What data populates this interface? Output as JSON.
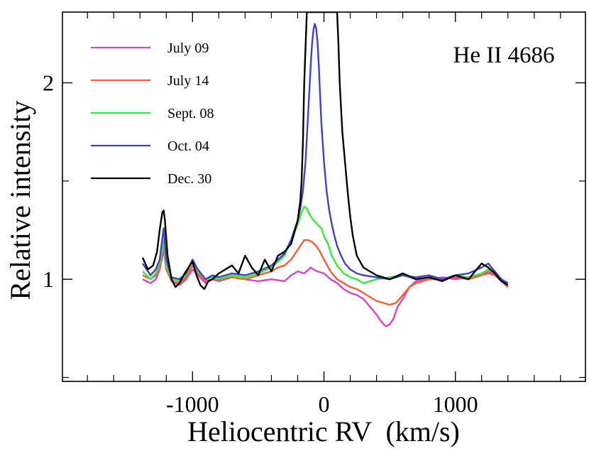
{
  "chart_data": {
    "type": "line",
    "title": "He II 4686",
    "xlabel": "Heliocentric RV  (km/s)",
    "ylabel": "Relative intensity",
    "xlim": [
      -1990,
      1990
    ],
    "ylim": [
      0.48,
      2.36
    ],
    "xticks_labeled": [
      -1000,
      0,
      1000
    ],
    "xtick_labels": [
      "-1000",
      "0",
      "1000"
    ],
    "xticks_minor": [
      -1800,
      -1600,
      -1400,
      -1200,
      -800,
      -600,
      -400,
      -200,
      200,
      400,
      600,
      800,
      1200,
      1400,
      1600,
      1800
    ],
    "yticks_labeled": [
      1,
      2
    ],
    "ytick_labels": [
      "1",
      "2"
    ],
    "yticks_minor": [
      0.5,
      1.5
    ],
    "legend_position": "top-left",
    "grid": false,
    "series": [
      {
        "name": "July 09",
        "color": "#e040d0",
        "x": [
          -1380,
          -1320,
          -1280,
          -1250,
          -1220,
          -1200,
          -1160,
          -1100,
          -1050,
          -1000,
          -960,
          -900,
          -850,
          -800,
          -700,
          -600,
          -500,
          -400,
          -300,
          -250,
          -200,
          -150,
          -100,
          -80,
          -50,
          0,
          50,
          100,
          150,
          200,
          250,
          300,
          350,
          400,
          430,
          470,
          500,
          530,
          560,
          600,
          650,
          700,
          800,
          900,
          1000,
          1100,
          1200,
          1250,
          1300,
          1350,
          1400
        ],
        "y": [
          1.0,
          0.98,
          1.0,
          1.05,
          1.15,
          1.05,
          0.99,
          0.97,
          1.0,
          1.05,
          1.02,
          0.98,
          1.0,
          0.99,
          1.01,
          1.0,
          0.99,
          1.0,
          0.99,
          1.02,
          1.04,
          1.03,
          1.06,
          1.05,
          1.04,
          1.03,
          1.0,
          0.98,
          0.95,
          0.93,
          0.92,
          0.9,
          0.86,
          0.82,
          0.79,
          0.76,
          0.77,
          0.8,
          0.86,
          0.9,
          0.96,
          0.99,
          1.0,
          1.01,
          1.0,
          1.01,
          1.02,
          1.04,
          1.02,
          1.0,
          0.96
        ]
      },
      {
        "name": "July 14",
        "color": "#ff5a30",
        "x": [
          -1380,
          -1320,
          -1280,
          -1250,
          -1220,
          -1200,
          -1160,
          -1100,
          -1050,
          -1000,
          -960,
          -900,
          -850,
          -800,
          -700,
          -600,
          -500,
          -400,
          -350,
          -300,
          -250,
          -200,
          -170,
          -150,
          -120,
          -90,
          -60,
          -30,
          0,
          50,
          100,
          150,
          200,
          250,
          300,
          350,
          400,
          450,
          500,
          550,
          600,
          650,
          700,
          800,
          900,
          1000,
          1100,
          1200,
          1250,
          1300,
          1350,
          1400
        ],
        "y": [
          1.02,
          1.0,
          1.02,
          1.06,
          1.17,
          1.06,
          0.99,
          0.98,
          1.01,
          1.07,
          1.03,
          0.99,
          1.0,
          1.0,
          1.01,
          1.0,
          1.02,
          1.04,
          1.06,
          1.07,
          1.1,
          1.15,
          1.18,
          1.2,
          1.2,
          1.19,
          1.17,
          1.14,
          1.1,
          1.04,
          1.0,
          0.98,
          0.96,
          0.95,
          0.93,
          0.91,
          0.89,
          0.88,
          0.87,
          0.88,
          0.92,
          0.96,
          0.98,
          1.0,
          1.0,
          1.01,
          1.0,
          1.02,
          1.03,
          1.02,
          0.99,
          0.96
        ]
      },
      {
        "name": "Sept. 08",
        "color": "#33ee33",
        "x": [
          -1380,
          -1320,
          -1280,
          -1250,
          -1220,
          -1200,
          -1160,
          -1100,
          -1050,
          -1000,
          -960,
          -900,
          -850,
          -800,
          -700,
          -600,
          -500,
          -400,
          -350,
          -300,
          -250,
          -200,
          -170,
          -150,
          -130,
          -110,
          -80,
          -50,
          -20,
          0,
          30,
          60,
          100,
          150,
          200,
          250,
          300,
          400,
          500,
          600,
          700,
          800,
          900,
          1000,
          1100,
          1200,
          1250,
          1300,
          1350,
          1400
        ],
        "y": [
          1.04,
          1.0,
          1.03,
          1.08,
          1.2,
          1.07,
          1.0,
          0.99,
          1.02,
          1.1,
          1.04,
          1.0,
          1.01,
          1.0,
          1.02,
          1.01,
          1.03,
          1.06,
          1.09,
          1.12,
          1.2,
          1.28,
          1.34,
          1.37,
          1.36,
          1.33,
          1.3,
          1.28,
          1.26,
          1.22,
          1.18,
          1.12,
          1.07,
          1.03,
          1.01,
          1.0,
          0.98,
          1.0,
          1.01,
          1.02,
          1.0,
          1.01,
          1.0,
          1.02,
          1.01,
          1.03,
          1.05,
          1.03,
          1.0,
          0.97
        ]
      },
      {
        "name": "Oct. 04",
        "color": "#4040cc",
        "x": [
          -1380,
          -1320,
          -1280,
          -1250,
          -1220,
          -1200,
          -1160,
          -1100,
          -1050,
          -1000,
          -960,
          -900,
          -850,
          -800,
          -700,
          -600,
          -500,
          -400,
          -350,
          -300,
          -250,
          -200,
          -180,
          -160,
          -140,
          -120,
          -100,
          -90,
          -80,
          -70,
          -60,
          -50,
          -40,
          -30,
          -20,
          0,
          20,
          40,
          60,
          80,
          100,
          130,
          160,
          200,
          250,
          300,
          400,
          500,
          600,
          700,
          800,
          900,
          1000,
          1100,
          1200,
          1250,
          1300,
          1350,
          1400
        ],
        "y": [
          1.08,
          1.02,
          1.05,
          1.1,
          1.26,
          1.1,
          1.01,
          1.0,
          1.03,
          1.1,
          1.05,
          1.0,
          1.02,
          1.01,
          1.03,
          1.02,
          1.04,
          1.07,
          1.1,
          1.13,
          1.2,
          1.3,
          1.36,
          1.45,
          1.6,
          1.85,
          2.1,
          2.2,
          2.27,
          2.3,
          2.28,
          2.22,
          2.1,
          1.95,
          1.8,
          1.6,
          1.45,
          1.35,
          1.28,
          1.22,
          1.17,
          1.12,
          1.08,
          1.05,
          1.03,
          1.02,
          1.01,
          1.0,
          1.02,
          1.01,
          1.02,
          1.0,
          1.02,
          1.03,
          1.06,
          1.08,
          1.04,
          1.0,
          0.98
        ]
      },
      {
        "name": "Dec. 30",
        "color": "#000000",
        "x": [
          -1380,
          -1340,
          -1300,
          -1270,
          -1250,
          -1230,
          -1220,
          -1210,
          -1190,
          -1160,
          -1130,
          -1100,
          -1060,
          -1030,
          -1000,
          -970,
          -940,
          -910,
          -880,
          -850,
          -800,
          -750,
          -700,
          -650,
          -600,
          -550,
          -500,
          -450,
          -400,
          -350,
          -300,
          -250,
          -220,
          -200,
          -180,
          -170,
          -160,
          -150,
          -130,
          -110,
          -100,
          -80,
          -60,
          -40,
          -20,
          0,
          20,
          40,
          60,
          80,
          90,
          100,
          110,
          120,
          140,
          160,
          180,
          200,
          220,
          250,
          300,
          350,
          400,
          500,
          600,
          700,
          800,
          900,
          1000,
          1100,
          1200,
          1250,
          1300,
          1350,
          1400
        ],
        "y": [
          1.11,
          1.05,
          1.07,
          1.14,
          1.25,
          1.34,
          1.35,
          1.3,
          1.12,
          1.0,
          0.96,
          0.98,
          1.03,
          1.06,
          1.09,
          1.02,
          0.97,
          0.95,
          0.99,
          1.0,
          1.03,
          1.05,
          1.07,
          1.03,
          1.12,
          1.06,
          1.02,
          1.1,
          1.04,
          1.12,
          1.14,
          1.18,
          1.25,
          1.3,
          1.4,
          1.5,
          1.7,
          2.0,
          2.36,
          2.36,
          2.36,
          2.36,
          2.36,
          2.36,
          2.36,
          2.36,
          2.36,
          2.36,
          2.36,
          2.36,
          2.36,
          2.36,
          2.2,
          2.0,
          1.75,
          1.6,
          1.45,
          1.32,
          1.22,
          1.12,
          1.06,
          1.04,
          1.02,
          1.0,
          1.03,
          1.0,
          1.01,
          0.99,
          1.02,
          1.0,
          1.08,
          1.06,
          1.03,
          0.99,
          0.97
        ]
      }
    ]
  }
}
